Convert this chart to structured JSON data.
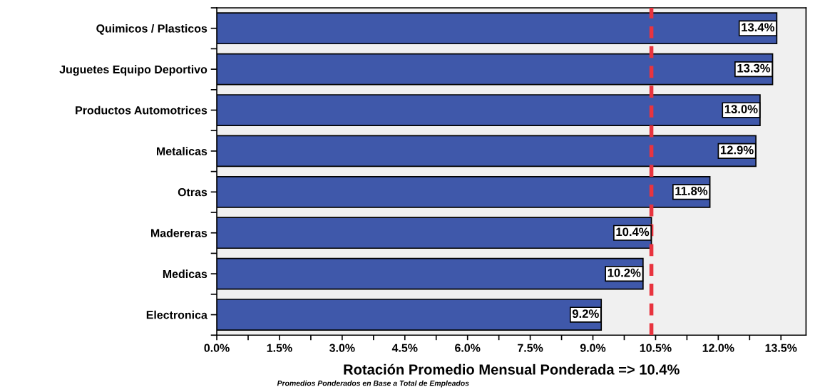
{
  "chart_data": {
    "type": "bar",
    "orientation": "horizontal",
    "categories": [
      "Quimicos / Plasticos",
      "Juguetes Equipo Deportivo",
      "Productos Automotrices",
      "Metalicas",
      "Otras",
      "Madereras",
      "Medicas",
      "Electronica"
    ],
    "values": [
      13.4,
      13.3,
      13.0,
      12.9,
      11.8,
      10.4,
      10.2,
      9.2
    ],
    "color": "#3f58aa",
    "xlabel": "Rotación Promedio Mensual Ponderada => 10.4%",
    "annotations": [
      "Promedios Ponderados en Base a Total de Empleados"
    ],
    "xlim": [
      0,
      14.1
    ],
    "xticks": [
      {
        "value": 0,
        "label": "0.0%"
      },
      {
        "value": 0.75,
        "label": null
      },
      {
        "value": 1.5,
        "label": "1.5%"
      },
      {
        "value": 2.25,
        "label": null
      },
      {
        "value": 3,
        "label": "3.0%"
      },
      {
        "value": 3.75,
        "label": null
      },
      {
        "value": 4.5,
        "label": "4.5%"
      },
      {
        "value": 5.25,
        "label": null
      },
      {
        "value": 6,
        "label": "6.0%"
      },
      {
        "value": 6.75,
        "label": null
      },
      {
        "value": 7.5,
        "label": "7.5%"
      },
      {
        "value": 8.25,
        "label": null
      },
      {
        "value": 9,
        "label": "9.0%"
      },
      {
        "value": 9.75,
        "label": null
      },
      {
        "value": 10.5,
        "label": "10.5%"
      },
      {
        "value": 11.25,
        "label": null
      },
      {
        "value": 12,
        "label": "12.0%"
      },
      {
        "value": 12.75,
        "label": null
      },
      {
        "value": 13.5,
        "label": "13.5%"
      }
    ],
    "value_labels": [
      "13.4%",
      "13.3%",
      "13.0%",
      "12.9%",
      "11.8%",
      "10.4%",
      "10.2%",
      "9.2%"
    ],
    "ref_lines": [
      {
        "axis": "x",
        "value": 10.4,
        "color": "#e8343f",
        "line_style": "dashed"
      }
    ],
    "grid": false,
    "legend": false
  }
}
